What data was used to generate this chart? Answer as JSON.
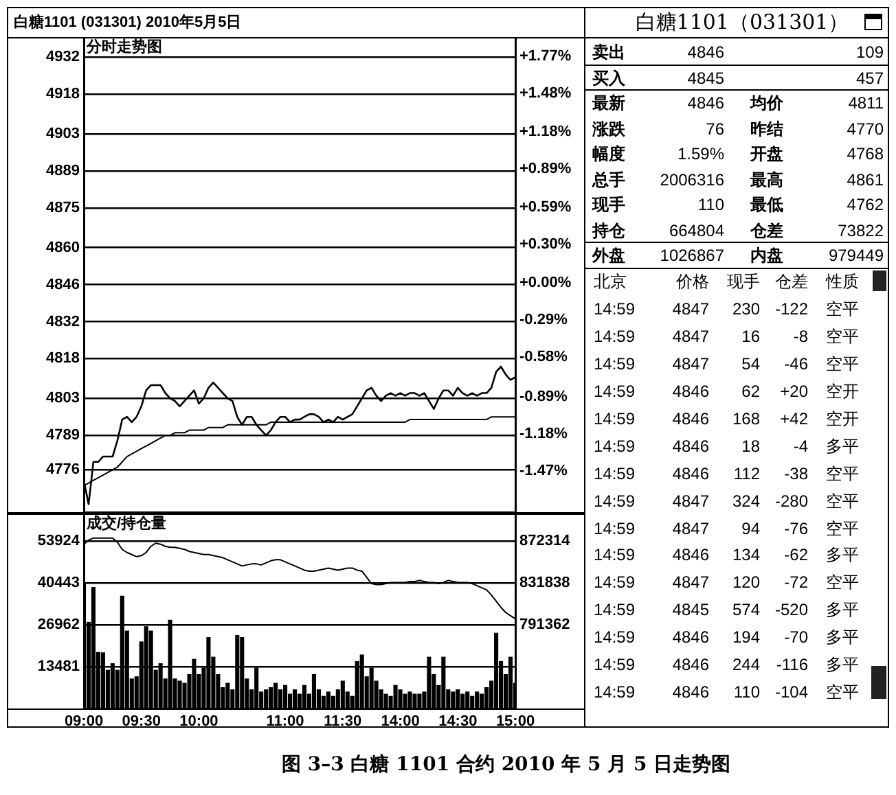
{
  "chart_data": [
    {
      "type": "line",
      "title": "白糖1101 (031301) 2010年5月5日",
      "subtitle": "分时走势图",
      "annotations": [
        "图 3–3 白糖 1101 合约 2010 年 5 月 5 日走势图"
      ],
      "categories": [
        null,
        null,
        null,
        null,
        null,
        null,
        null,
        null,
        null,
        null,
        null,
        null,
        null,
        null,
        null,
        null,
        null,
        null,
        null,
        null,
        null,
        null,
        null,
        null,
        null,
        null,
        null,
        null,
        null,
        null,
        null,
        null,
        null,
        null,
        null,
        null,
        null,
        null,
        null,
        null,
        null,
        null,
        null,
        null,
        null,
        null,
        null,
        null,
        null,
        null,
        null,
        null,
        null,
        null,
        null,
        null,
        null,
        null,
        null,
        null,
        null,
        null,
        null,
        null,
        null,
        null,
        null,
        null,
        null,
        null,
        null,
        null,
        null,
        null,
        null,
        null,
        null,
        null,
        null,
        null,
        null,
        null,
        null,
        null,
        null,
        null,
        null,
        null,
        null,
        null,
        null
      ],
      "ylim": [
        4760,
        4939
      ],
      "yticks": [
        4932,
        4918,
        4903,
        4889,
        4875,
        4860,
        4846,
        4832,
        4818,
        4803,
        4789,
        4776
      ],
      "y2lim": [
        -1.79,
        1.91
      ],
      "y2ticks": [
        {
          "value": 1.77,
          "label": "+1.77%"
        },
        {
          "value": 1.48,
          "label": "+1.48%"
        },
        {
          "value": 1.18,
          "label": "+1.18%"
        },
        {
          "value": 0.89,
          "label": "+0.89%"
        },
        {
          "value": 0.59,
          "label": "+0.59%"
        },
        {
          "value": 0.3,
          "label": "+0.30%"
        },
        {
          "value": 0,
          "label": "+0.00%"
        },
        {
          "value": -0.29,
          "label": "-0.29%"
        },
        {
          "value": -0.58,
          "label": "-0.58%"
        },
        {
          "value": -0.89,
          "label": "-0.89%"
        },
        {
          "value": -1.18,
          "label": "-1.18%"
        },
        {
          "value": -1.47,
          "label": "-1.47%"
        }
      ],
      "grid": "y",
      "marker": "none",
      "series": [
        {
          "color": "#000000",
          "values": [
            4772,
            4763,
            4779,
            4779,
            4781,
            4781,
            4781,
            4787,
            4795,
            4796,
            4794,
            4796,
            4800,
            4806,
            4808,
            4808,
            4808,
            4805,
            4803,
            4802,
            4800,
            4802,
            4804,
            4806,
            4801,
            4803,
            4807,
            4809,
            4807,
            4805,
            4803,
            4802,
            4796,
            4793,
            4796,
            4796,
            4793,
            4791,
            4789,
            4791,
            4794,
            4796,
            4796,
            4794,
            4795,
            4795,
            4796,
            4797,
            4797,
            4796,
            4794,
            4795,
            4794,
            4796,
            4795,
            4796,
            4797,
            4800,
            4803,
            4806,
            4807,
            4804,
            4802,
            4804,
            4805,
            4804,
            4805,
            4804,
            4805,
            4805,
            4804,
            4805,
            4802,
            4799,
            4803,
            4806,
            4806,
            4804,
            4807,
            4805,
            4804,
            4805,
            4804,
            4805,
            4805,
            4807,
            4813,
            4815,
            4812,
            4810,
            4811
          ]
        },
        {
          "color": "#000000",
          "values": [
            4770,
            4771,
            4772,
            4773,
            4774,
            4775,
            4776,
            4777,
            4779,
            4781,
            4782,
            4783,
            4784,
            4785,
            4786,
            4787,
            4788,
            4789,
            4789,
            4790,
            4790,
            4790,
            4791,
            4791,
            4791,
            4791,
            4792,
            4792,
            4792,
            4792,
            4793,
            4793,
            4793,
            4793,
            4793,
            4793,
            4793,
            4793,
            4793,
            4794,
            4794,
            4794,
            4794,
            4794,
            4794,
            4794,
            4794,
            4794,
            4794,
            4794,
            4794,
            4794,
            4794,
            4794,
            4794,
            4794,
            4794,
            4794,
            4794,
            4794,
            4794,
            4794,
            4794,
            4794,
            4794,
            4794,
            4794,
            4794,
            4795,
            4795,
            4795,
            4795,
            4795,
            4795,
            4795,
            4795,
            4795,
            4795,
            4795,
            4795,
            4795,
            4795,
            4795,
            4795,
            4795,
            4796,
            4796,
            4796,
            4796,
            4796,
            4796
          ]
        }
      ]
    },
    {
      "type": "bar",
      "title": "成交/持仓量",
      "categories": [
        "09:00",
        null,
        null,
        null,
        null,
        null,
        null,
        null,
        null,
        null,
        null,
        null,
        "09:30",
        null,
        null,
        null,
        null,
        null,
        null,
        null,
        null,
        null,
        null,
        null,
        "10:00",
        null,
        null,
        null,
        null,
        null,
        null,
        null,
        null,
        null,
        null,
        null,
        null,
        null,
        null,
        null,
        null,
        null,
        "11:00",
        null,
        null,
        null,
        null,
        null,
        null,
        null,
        null,
        null,
        null,
        null,
        "11:30",
        null,
        null,
        null,
        null,
        null,
        null,
        null,
        null,
        null,
        null,
        null,
        "14:00",
        null,
        null,
        null,
        null,
        null,
        null,
        null,
        null,
        null,
        null,
        null,
        "14:30",
        null,
        null,
        null,
        null,
        null,
        null,
        null,
        null,
        null,
        null,
        null,
        "15:00"
      ],
      "ylim": [
        0,
        62250
      ],
      "yticks": [
        13481,
        26962,
        40443,
        53924
      ],
      "y2lim": [
        710400,
        897300
      ],
      "y2ticks": [
        791362,
        831838,
        872314
      ],
      "grid": "y",
      "marker": "none",
      "series": [
        {
          "type": "bar",
          "color": "#000000",
          "values": [
            40300,
            27700,
            38900,
            18000,
            17900,
            12300,
            14400,
            12300,
            36100,
            24900,
            9500,
            10200,
            21400,
            26300,
            24900,
            12300,
            14400,
            9500,
            28400,
            9500,
            8800,
            8100,
            10900,
            15800,
            10900,
            13000,
            22800,
            16500,
            10900,
            6700,
            8100,
            6000,
            23500,
            22800,
            9500,
            6000,
            13000,
            5300,
            6000,
            6700,
            8100,
            6000,
            7400,
            4600,
            6000,
            4600,
            7400,
            4600,
            10900,
            6000,
            3900,
            5300,
            3900,
            6000,
            8800,
            5300,
            3900,
            15100,
            17200,
            10200,
            13000,
            8800,
            6000,
            4600,
            3900,
            7400,
            6000,
            4600,
            5300,
            4600,
            4600,
            5300,
            16500,
            10900,
            7400,
            16500,
            6000,
            5300,
            6000,
            4600,
            5300,
            3900,
            5300,
            4600,
            6700,
            8800,
            24200,
            15100,
            10900,
            16500,
            8100
          ]
        },
        {
          "type": "line",
          "axis": "y2",
          "color": "#000000",
          "values": [
            869000,
            873000,
            875000,
            875000,
            875000,
            875000,
            875000,
            871000,
            864000,
            861000,
            859000,
            857000,
            858000,
            861000,
            867000,
            870000,
            869000,
            867000,
            866000,
            866000,
            865000,
            864000,
            862000,
            861000,
            860000,
            859000,
            859000,
            858000,
            857000,
            856000,
            854000,
            852000,
            850000,
            848000,
            849000,
            850000,
            850000,
            849000,
            851000,
            853000,
            854000,
            854000,
            852000,
            850000,
            848000,
            846000,
            844000,
            843000,
            843000,
            844000,
            845000,
            846000,
            845000,
            844000,
            845000,
            846000,
            846000,
            844000,
            843000,
            837000,
            831000,
            830000,
            830000,
            831000,
            832000,
            832000,
            832000,
            832000,
            833000,
            833000,
            834000,
            833000,
            832000,
            832000,
            831000,
            832000,
            834000,
            833000,
            832000,
            832000,
            832000,
            831000,
            829000,
            827000,
            825000,
            820000,
            814000,
            808000,
            803000,
            800000,
            797000
          ]
        }
      ]
    },
    {
      "type": "other",
      "title": "白糖1101（031301）",
      "annotations": [
        "卖出 4846 109",
        "买入 4845 457",
        "最新 4846 均价 4811",
        "涨跌 76 昨结 4770",
        "幅度 1.59% 开盘 4768",
        "总手 2006316 最高 4861",
        "现手 110 最低 4762",
        "持仓 664804 仓差 73822",
        "外盘 1026867 内盘 979449",
        "北京 价格 现手 仓差 性质",
        "14:59 4847 230 -122 空平",
        "14:59 4847 16 -8 空平",
        "14:59 4847 54 -46 空平",
        "14:59 4846 62 +20 空开",
        "14:59 4846 168 +42 空开",
        "14:59 4846 18 -4 多平",
        "14:59 4846 112 -38 空平",
        "14:59 4847 324 -280 空平",
        "14:59 4847 94 -76 空平",
        "14:59 4846 134 -62 多平",
        "14:59 4847 120 -72 空平",
        "14:59 4845 574 -520 多平",
        "14:59 4846 194 -70 多平",
        "14:59 4846 244 -116 多平",
        "14:59 4846 110 -104 空平"
      ]
    }
  ]
}
